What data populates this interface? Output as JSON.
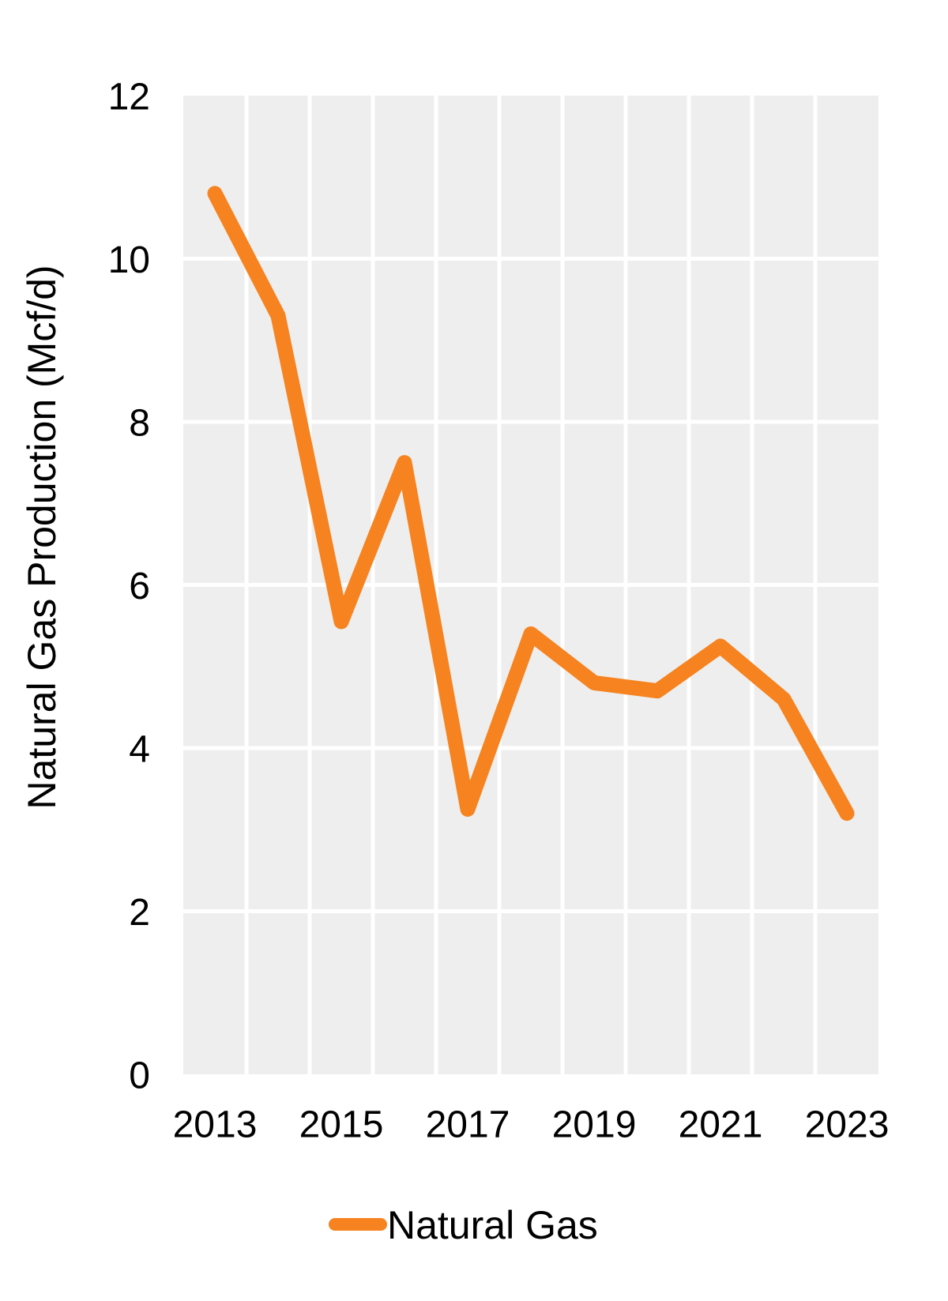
{
  "chart_data": {
    "type": "line",
    "title": "",
    "x": [
      2013,
      2014,
      2015,
      2016,
      2017,
      2018,
      2019,
      2020,
      2021,
      2022,
      2023
    ],
    "series": [
      {
        "name": "Natural Gas",
        "values": [
          10.8,
          9.3,
          5.55,
          7.5,
          3.25,
          5.4,
          4.8,
          4.7,
          5.25,
          4.6,
          3.2
        ],
        "color": "#F6831F"
      }
    ],
    "xlabel": "",
    "ylabel": "Natural Gas Production (Mcf/d)",
    "ylim": [
      0,
      12
    ],
    "yticks": [
      0,
      2,
      4,
      6,
      8,
      10,
      12
    ],
    "xtick_labels": [
      "2013",
      "2015",
      "2017",
      "2019",
      "2021",
      "2023"
    ],
    "grid": true,
    "legend_position": "bottom-center"
  },
  "style": {
    "line_color": "#F6831F",
    "plot_bg": "#EEEEEE",
    "grid_color": "#FFFFFF",
    "text_color": "#000000",
    "background": "#FFFFFF"
  }
}
